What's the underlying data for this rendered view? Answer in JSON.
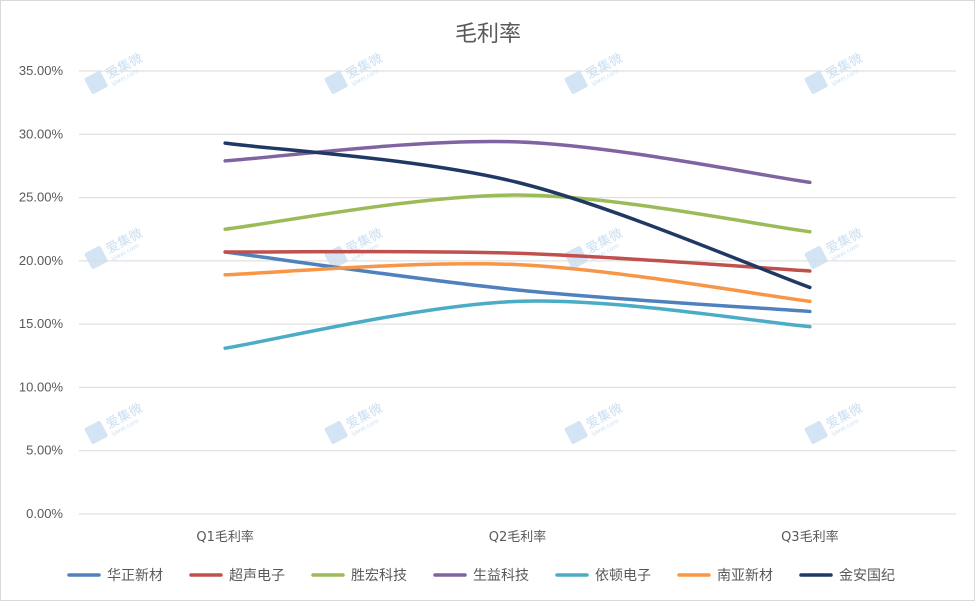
{
  "chart_data": {
    "type": "line",
    "title": "毛利率",
    "xlabel": "",
    "ylabel": "",
    "categories": [
      "Q1毛利率",
      "Q2毛利率",
      "Q3毛利率"
    ],
    "y_ticks": [
      "0.00%",
      "5.00%",
      "10.00%",
      "15.00%",
      "20.00%",
      "25.00%",
      "30.00%",
      "35.00%"
    ],
    "ylim": [
      0,
      0.35
    ],
    "grid": true,
    "smooth": true,
    "legend_position": "bottom",
    "series": [
      {
        "name": "华正新材",
        "color": "#4f81bd",
        "values": [
          0.207,
          0.177,
          0.16
        ]
      },
      {
        "name": "超声电子",
        "color": "#c0504d",
        "values": [
          0.207,
          0.206,
          0.192
        ]
      },
      {
        "name": "胜宏科技",
        "color": "#9bbb59",
        "values": [
          0.225,
          0.252,
          0.223
        ]
      },
      {
        "name": "生益科技",
        "color": "#8064a2",
        "values": [
          0.279,
          0.294,
          0.262
        ]
      },
      {
        "name": "依顿电子",
        "color": "#4bacc6",
        "values": [
          0.131,
          0.168,
          0.148
        ]
      },
      {
        "name": "南亚新材",
        "color": "#f79646",
        "values": [
          0.189,
          0.197,
          0.168
        ]
      },
      {
        "name": "金安国纪",
        "color": "#1f3864",
        "values": [
          0.293,
          0.262,
          0.179
        ]
      }
    ]
  },
  "watermark": {
    "text": "爱集微",
    "subtext": "ijiwei.com"
  }
}
